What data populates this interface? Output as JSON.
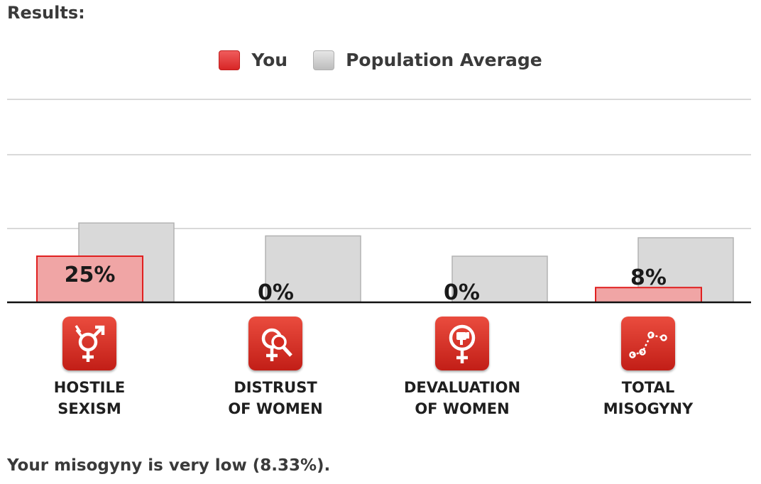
{
  "results_heading": "Results:",
  "legend": {
    "you_label": "You",
    "avg_label": "Population Average"
  },
  "colors": {
    "you_fill": "#f0a5a5",
    "you_stroke": "#e02020",
    "avg_fill": "#d9d9d9",
    "avg_stroke": "#b3b3b3",
    "icon_bg": "#d4291f"
  },
  "chart_data": {
    "type": "bar",
    "categories": [
      {
        "line1": "HOSTILE",
        "line2": "SEXISM",
        "icon": "venus-mars-icon"
      },
      {
        "line1": "DISTRUST",
        "line2": "OF WOMEN",
        "icon": "venus-magnifier-icon"
      },
      {
        "line1": "DEVALUATION",
        "line2": "OF WOMEN",
        "icon": "venus-thumbs-down-icon"
      },
      {
        "line1": "TOTAL",
        "line2": "MISOGYNY",
        "icon": "trend-line-icon"
      }
    ],
    "series": [
      {
        "name": "You",
        "values": [
          25,
          0,
          0,
          8
        ],
        "labels": [
          "25%",
          "0%",
          "0%",
          "8%"
        ]
      },
      {
        "name": "Population Average",
        "values": [
          43,
          36,
          25,
          35
        ]
      }
    ],
    "ylim": [
      0,
      100
    ],
    "grid": true,
    "legend_position": "top-center"
  },
  "summary": "Your misogyny is very low (8.33%)."
}
